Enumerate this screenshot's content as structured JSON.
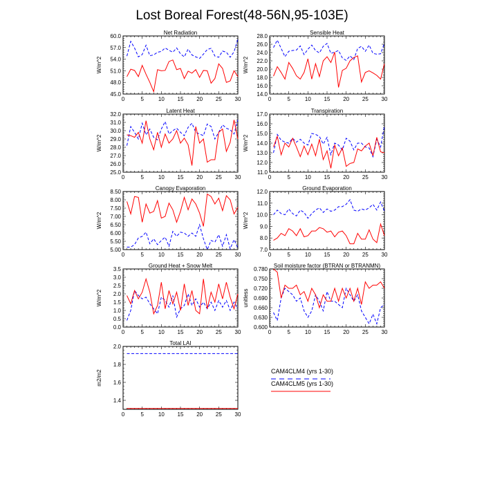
{
  "figure": {
    "title": "Lost Boreal Forest(48-56N,95-103E)"
  },
  "legend": {
    "items": [
      {
        "label": "CAM4CLM4 (yrs 1-30)",
        "color": "#0000ff",
        "dash": true
      },
      {
        "label": "CAM4CLM5 (yrs 1-30)",
        "color": "#ff0000",
        "dash": false
      }
    ]
  },
  "chart_data": [
    {
      "type": "line",
      "title": "Net Radiation",
      "ylabel": "W/m^2",
      "xlim": [
        0,
        30
      ],
      "xticks": [
        "0",
        "5",
        "10",
        "15",
        "20",
        "25",
        "30"
      ],
      "ylim": [
        45,
        60
      ],
      "yticks": [
        "45.0",
        "48.0",
        "51.0",
        "54.0",
        "57.0",
        "60.0"
      ],
      "x": [
        1,
        2,
        3,
        4,
        5,
        6,
        7,
        8,
        9,
        10,
        11,
        12,
        13,
        14,
        15,
        16,
        17,
        18,
        19,
        20,
        21,
        22,
        23,
        24,
        25,
        26,
        27,
        28,
        29,
        30
      ],
      "series": [
        {
          "color": "#0000ff",
          "dash": true,
          "values": [
            54.8,
            58.6,
            56.9,
            54.6,
            55.2,
            57.6,
            54.9,
            55.1,
            55.8,
            56.0,
            56.9,
            56.3,
            55.8,
            56.9,
            55.4,
            54.6,
            56.6,
            55.1,
            54.6,
            54.2,
            55.3,
            56.5,
            56.8,
            54.8,
            54.5,
            56.1,
            55.8,
            54.5,
            55.9,
            59.2
          ]
        },
        {
          "color": "#ff0000",
          "dash": false,
          "values": [
            49.5,
            51.4,
            51.1,
            49.5,
            52.4,
            50.1,
            48.0,
            45.6,
            51.3,
            51.0,
            51.1,
            53.4,
            53.8,
            51.3,
            51.6,
            49.0,
            50.9,
            50.4,
            51.3,
            49.3,
            51.1,
            51.0,
            47.8,
            49.0,
            52.8,
            51.6,
            48.0,
            48.4,
            51.0,
            49.5
          ]
        }
      ]
    },
    {
      "type": "line",
      "title": "Sensible Heat",
      "ylabel": "W/m^2",
      "xlim": [
        0,
        30
      ],
      "xticks": [
        "0",
        "5",
        "10",
        "15",
        "20",
        "25",
        "30"
      ],
      "ylim": [
        14,
        28
      ],
      "yticks": [
        "14.0",
        "16.0",
        "18.0",
        "20.0",
        "22.0",
        "24.0",
        "26.0",
        "28.0"
      ],
      "x": [
        1,
        2,
        3,
        4,
        5,
        6,
        7,
        8,
        9,
        10,
        11,
        12,
        13,
        14,
        15,
        16,
        17,
        18,
        19,
        20,
        21,
        22,
        23,
        24,
        25,
        26,
        27,
        28,
        29,
        30
      ],
      "series": [
        {
          "color": "#0000ff",
          "dash": true,
          "values": [
            25.2,
            27.0,
            25.0,
            23.0,
            24.3,
            24.5,
            24.6,
            25.6,
            23.5,
            24.8,
            25.8,
            24.5,
            23.9,
            25.5,
            26.2,
            23.8,
            24.1,
            24.5,
            22.7,
            22.1,
            23.2,
            22.3,
            25.0,
            25.5,
            24.3,
            25.8,
            23.8,
            23.6,
            23.7,
            26.3
          ]
        },
        {
          "color": "#ff0000",
          "dash": false,
          "values": [
            18.3,
            20.6,
            19.2,
            17.6,
            21.6,
            20.2,
            18.4,
            17.6,
            19.2,
            22.5,
            17.6,
            21.3,
            18.2,
            22.0,
            23.0,
            21.6,
            24.1,
            15.6,
            19.7,
            20.2,
            22.0,
            22.8,
            23.2,
            16.9,
            19.2,
            19.6,
            19.1,
            18.5,
            17.6,
            21.3
          ]
        }
      ]
    },
    {
      "type": "line",
      "title": "Latent Heat",
      "ylabel": "W/m^2",
      "xlim": [
        0,
        30
      ],
      "xticks": [
        "0",
        "5",
        "10",
        "15",
        "20",
        "25",
        "30"
      ],
      "ylim": [
        25,
        32
      ],
      "yticks": [
        "25.0",
        "26.0",
        "27.0",
        "28.0",
        "29.0",
        "30.0",
        "31.0",
        "32.0"
      ],
      "x": [
        1,
        2,
        3,
        4,
        5,
        6,
        7,
        8,
        9,
        10,
        11,
        12,
        13,
        14,
        15,
        16,
        17,
        18,
        19,
        20,
        21,
        22,
        23,
        24,
        25,
        26,
        27,
        28,
        29,
        30
      ],
      "series": [
        {
          "color": "#0000ff",
          "dash": true,
          "values": [
            28.2,
            30.5,
            29.8,
            29.0,
            30.9,
            29.5,
            30.2,
            29.2,
            28.9,
            30.2,
            31.1,
            29.6,
            30.0,
            30.3,
            29.8,
            29.4,
            30.4,
            30.9,
            29.8,
            29.6,
            29.4,
            30.8,
            30.5,
            29.0,
            29.8,
            30.7,
            30.3,
            30.1,
            29.6,
            31.3
          ]
        },
        {
          "color": "#ff0000",
          "dash": false,
          "values": [
            29.5,
            29.4,
            29.2,
            29.8,
            28.5,
            31.2,
            29.0,
            27.7,
            29.8,
            28.0,
            29.6,
            28.5,
            29.0,
            30.0,
            28.5,
            29.1,
            28.3,
            25.8,
            30.5,
            28.5,
            29.0,
            26.2,
            26.5,
            26.5,
            29.8,
            30.2,
            27.5,
            28.6,
            31.3,
            29.0
          ]
        }
      ]
    },
    {
      "type": "line",
      "title": "Transpiration",
      "ylabel": "W/m^2",
      "xlim": [
        0,
        30
      ],
      "xticks": [
        "0",
        "5",
        "10",
        "15",
        "20",
        "25",
        "30"
      ],
      "ylim": [
        11,
        17
      ],
      "yticks": [
        "11.0",
        "12.0",
        "13.0",
        "14.0",
        "15.0",
        "16.0",
        "17.0"
      ],
      "x": [
        1,
        2,
        3,
        4,
        5,
        6,
        7,
        8,
        9,
        10,
        11,
        12,
        13,
        14,
        15,
        16,
        17,
        18,
        19,
        20,
        21,
        22,
        23,
        24,
        25,
        26,
        27,
        28,
        29,
        30
      ],
      "series": [
        {
          "color": "#0000ff",
          "dash": true,
          "values": [
            13.0,
            14.9,
            14.3,
            14.1,
            14.0,
            14.5,
            14.1,
            14.4,
            14.0,
            13.8,
            15.0,
            14.9,
            14.7,
            13.9,
            14.6,
            12.8,
            14.0,
            13.8,
            13.3,
            14.5,
            14.2,
            13.3,
            14.0,
            14.0,
            13.6,
            13.5,
            12.6,
            14.4,
            13.6,
            15.8
          ]
        },
        {
          "color": "#ff0000",
          "dash": false,
          "values": [
            13.6,
            14.7,
            12.8,
            14.0,
            13.6,
            14.5,
            13.6,
            12.6,
            13.7,
            12.8,
            13.9,
            12.7,
            14.4,
            12.3,
            13.2,
            11.4,
            13.8,
            12.7,
            13.5,
            11.6,
            11.9,
            12.0,
            13.4,
            13.2,
            13.7,
            14.0,
            12.7,
            14.6,
            13.1,
            13.0
          ]
        }
      ]
    },
    {
      "type": "line",
      "title": "Canopy Evaporation",
      "ylabel": "W/m^2",
      "xlim": [
        0,
        30
      ],
      "xticks": [
        "0",
        "5",
        "10",
        "15",
        "20",
        "25",
        "30"
      ],
      "ylim": [
        5,
        8.5
      ],
      "yticks": [
        "5.00",
        "5.50",
        "6.00",
        "6.50",
        "7.00",
        "7.50",
        "8.00",
        "8.50"
      ],
      "x": [
        1,
        2,
        3,
        4,
        5,
        6,
        7,
        8,
        9,
        10,
        11,
        12,
        13,
        14,
        15,
        16,
        17,
        18,
        19,
        20,
        21,
        22,
        23,
        24,
        25,
        26,
        27,
        28,
        29,
        30
      ],
      "series": [
        {
          "color": "#0000ff",
          "dash": true,
          "values": [
            5.15,
            5.15,
            5.3,
            5.7,
            5.8,
            6.05,
            5.35,
            5.65,
            5.3,
            5.55,
            5.75,
            5.2,
            6.1,
            5.8,
            6.05,
            6.0,
            5.8,
            6.0,
            5.8,
            6.5,
            5.65,
            5.0,
            5.55,
            5.45,
            5.9,
            5.2,
            5.9,
            5.05,
            5.6,
            5.1
          ]
        },
        {
          "color": "#ff0000",
          "dash": false,
          "values": [
            7.9,
            7.15,
            8.2,
            8.15,
            6.65,
            7.75,
            7.2,
            7.3,
            7.95,
            6.9,
            7.0,
            7.8,
            7.4,
            6.65,
            7.3,
            8.15,
            7.4,
            8.05,
            7.75,
            7.2,
            6.4,
            8.35,
            8.2,
            7.75,
            8.1,
            7.35,
            8.25,
            8.0,
            7.15,
            7.55
          ]
        }
      ]
    },
    {
      "type": "line",
      "title": "Ground Evaporation",
      "ylabel": "W/m^2",
      "xlim": [
        0,
        30
      ],
      "xticks": [
        "0",
        "5",
        "10",
        "15",
        "20",
        "25",
        "30"
      ],
      "ylim": [
        7,
        12
      ],
      "yticks": [
        "7.0",
        "8.0",
        "9.0",
        "10.0",
        "11.0",
        "12.0"
      ],
      "x": [
        1,
        2,
        3,
        4,
        5,
        6,
        7,
        8,
        9,
        10,
        11,
        12,
        13,
        14,
        15,
        16,
        17,
        18,
        19,
        20,
        21,
        22,
        23,
        24,
        25,
        26,
        27,
        28,
        29,
        30
      ],
      "series": [
        {
          "color": "#0000ff",
          "dash": true,
          "values": [
            10.0,
            10.4,
            10.1,
            10.0,
            10.5,
            10.1,
            9.9,
            10.4,
            10.2,
            9.7,
            10.1,
            10.4,
            10.6,
            10.2,
            10.5,
            10.3,
            10.4,
            10.7,
            10.7,
            10.9,
            11.3,
            10.4,
            10.3,
            10.5,
            10.4,
            10.6,
            10.9,
            10.4,
            11.1,
            10.3
          ]
        },
        {
          "color": "#ff0000",
          "dash": false,
          "values": [
            7.8,
            8.0,
            8.4,
            8.2,
            8.8,
            8.6,
            8.2,
            8.8,
            8.1,
            8.2,
            8.6,
            8.6,
            8.9,
            8.8,
            8.5,
            8.6,
            8.1,
            8.5,
            8.6,
            8.2,
            7.5,
            7.5,
            8.4,
            7.9,
            7.9,
            8.7,
            7.9,
            7.6,
            9.2,
            8.2
          ]
        }
      ]
    },
    {
      "type": "line",
      "title": "Ground Heat + Snow Melt",
      "ylabel": "W/m^2",
      "xlim": [
        0,
        30
      ],
      "xticks": [
        "0",
        "5",
        "10",
        "15",
        "20",
        "25",
        "30"
      ],
      "ylim": [
        0,
        3.5
      ],
      "yticks": [
        "0.0",
        "0.5",
        "1.0",
        "1.5",
        "2.0",
        "2.5",
        "3.0",
        "3.5"
      ],
      "x": [
        1,
        2,
        3,
        4,
        5,
        6,
        7,
        8,
        9,
        10,
        11,
        12,
        13,
        14,
        15,
        16,
        17,
        18,
        19,
        20,
        21,
        22,
        23,
        24,
        25,
        26,
        27,
        28,
        29,
        30
      ],
      "series": [
        {
          "color": "#0000ff",
          "dash": true,
          "values": [
            0.4,
            1.0,
            2.2,
            1.9,
            1.7,
            1.8,
            1.4,
            1.1,
            0.8,
            1.8,
            1.6,
            1.2,
            1.9,
            0.6,
            1.1,
            1.3,
            2.0,
            1.3,
            1.7,
            1.2,
            1.5,
            1.1,
            1.5,
            1.0,
            1.6,
            1.2,
            1.6,
            1.0,
            1.5,
            1.1
          ]
        },
        {
          "color": "#ff0000",
          "dash": false,
          "values": [
            1.9,
            1.4,
            2.2,
            1.7,
            2.1,
            2.9,
            2.1,
            0.8,
            1.3,
            2.7,
            1.1,
            2.2,
            1.4,
            2.1,
            1.0,
            2.6,
            1.3,
            2.2,
            1.0,
            0.8,
            2.9,
            1.1,
            2.1,
            1.5,
            2.6,
            1.7,
            2.7,
            1.8,
            1.1,
            2.0
          ]
        }
      ]
    },
    {
      "type": "line",
      "title": "Soil moisture factor (BTRAN or BTRANMN)",
      "ylabel": "unitless",
      "xlim": [
        0,
        30
      ],
      "xticks": [
        "0",
        "5",
        "10",
        "15",
        "20",
        "25",
        "30"
      ],
      "ylim": [
        0.6,
        0.78
      ],
      "yticks": [
        "0.600",
        "0.630",
        "0.660",
        "0.690",
        "0.720",
        "0.750",
        "0.780"
      ],
      "x": [
        1,
        2,
        3,
        4,
        5,
        6,
        7,
        8,
        9,
        10,
        11,
        12,
        13,
        14,
        15,
        16,
        17,
        18,
        19,
        20,
        21,
        22,
        23,
        24,
        25,
        26,
        27,
        28,
        29,
        30
      ],
      "series": [
        {
          "color": "#0000ff",
          "dash": true,
          "values": [
            0.645,
            0.62,
            0.69,
            0.72,
            0.71,
            0.7,
            0.68,
            0.69,
            0.65,
            0.63,
            0.65,
            0.7,
            0.68,
            0.65,
            0.71,
            0.68,
            0.68,
            0.67,
            0.66,
            0.72,
            0.7,
            0.68,
            0.7,
            0.65,
            0.63,
            0.61,
            0.64,
            0.61,
            0.66,
            0.67
          ]
        },
        {
          "color": "#ff0000",
          "dash": false,
          "values": [
            0.78,
            0.77,
            0.69,
            0.73,
            0.72,
            0.72,
            0.73,
            0.7,
            0.71,
            0.68,
            0.72,
            0.7,
            0.66,
            0.7,
            0.68,
            0.68,
            0.72,
            0.68,
            0.72,
            0.69,
            0.72,
            0.68,
            0.72,
            0.67,
            0.74,
            0.72,
            0.73,
            0.73,
            0.74,
            0.72
          ]
        }
      ]
    },
    {
      "type": "line",
      "title": "Total LAI",
      "ylabel": "m2/m2",
      "xlim": [
        0,
        30
      ],
      "xticks": [
        "0",
        "5",
        "10",
        "15",
        "20",
        "25",
        "30"
      ],
      "ylim": [
        1.3,
        2.0
      ],
      "yticks": [
        "1.4",
        "1.6",
        "1.8",
        "2.0"
      ],
      "x": [
        1,
        2,
        3,
        4,
        5,
        6,
        7,
        8,
        9,
        10,
        11,
        12,
        13,
        14,
        15,
        16,
        17,
        18,
        19,
        20,
        21,
        22,
        23,
        24,
        25,
        26,
        27,
        28,
        29,
        30
      ],
      "series": [
        {
          "color": "#0000ff",
          "dash": true,
          "values": [
            1.92,
            1.92,
            1.92,
            1.92,
            1.92,
            1.92,
            1.92,
            1.92,
            1.92,
            1.92,
            1.92,
            1.92,
            1.92,
            1.92,
            1.92,
            1.92,
            1.92,
            1.92,
            1.92,
            1.92,
            1.92,
            1.92,
            1.92,
            1.92,
            1.92,
            1.92,
            1.92,
            1.92,
            1.92,
            1.92
          ]
        },
        {
          "color": "#ff0000",
          "dash": false,
          "values": [
            1.31,
            1.31,
            1.31,
            1.31,
            1.31,
            1.31,
            1.31,
            1.31,
            1.31,
            1.31,
            1.31,
            1.31,
            1.31,
            1.31,
            1.31,
            1.31,
            1.31,
            1.31,
            1.31,
            1.31,
            1.31,
            1.31,
            1.31,
            1.31,
            1.31,
            1.31,
            1.31,
            1.31,
            1.31,
            1.31
          ]
        }
      ]
    }
  ]
}
